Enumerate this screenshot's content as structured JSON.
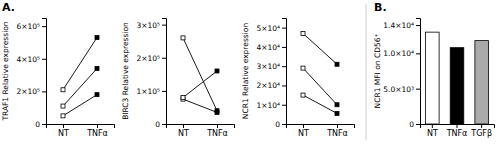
{
  "chart_data": [
    {
      "type": "line",
      "title": "A.",
      "y_label": "TRAF1 Relative expression",
      "categories": [
        "NT",
        "TNFα"
      ],
      "color": "black",
      "marker": "square",
      "series": [
        {
          "values": [
            50000.0,
            180000.0
          ]
        },
        {
          "values": [
            110000.0,
            340000.0
          ]
        },
        {
          "values": [
            210000.0,
            530000.0
          ]
        }
      ],
      "ylim": [
        0,
        650000.0
      ],
      "yticks": [
        0,
        {
          "value": 200000.0,
          "label": "2×10⁵"
        },
        {
          "value": 400000.0,
          "label": "4×10⁵"
        },
        {
          "value": 600000.0,
          "label": "6×10⁵"
        }
      ]
    },
    {
      "type": "line",
      "y_label": "BIRC3 Relative expression",
      "categories": [
        "NT",
        "TNFα"
      ],
      "color": "black",
      "marker": "square",
      "series": [
        {
          "values": [
            75000.0,
            35000.0
          ]
        },
        {
          "values": [
            80000.0,
            160000.0
          ]
        },
        {
          "values": [
            260000.0,
            40000.0
          ]
        }
      ],
      "ylim": [
        0,
        320000.0
      ],
      "yticks": [
        0,
        {
          "value": 100000.0,
          "label": "1×10⁵"
        },
        {
          "value": 200000.0,
          "label": "2×10⁵"
        },
        {
          "value": 300000.0,
          "label": "3×10⁵"
        }
      ]
    },
    {
      "type": "line",
      "y_label": "NCR1 Relative expression",
      "categories": [
        "NT",
        "TNFα"
      ],
      "color": "black",
      "marker": "square",
      "series": [
        {
          "values": [
            15000.0,
            5500.0
          ]
        },
        {
          "values": [
            29000.0,
            10000.0
          ]
        },
        {
          "values": [
            47000.0,
            31000.0
          ]
        }
      ],
      "ylim": [
        0,
        55000.0
      ],
      "yticks": [
        0,
        {
          "value": 10000.0,
          "label": "1×10⁴"
        },
        {
          "value": 20000.0,
          "label": "2×10⁴"
        },
        {
          "value": 30000.0,
          "label": "3×10⁴"
        },
        {
          "value": 40000.0,
          "label": "4×10⁴"
        },
        {
          "value": 50000.0,
          "label": "5×10⁴"
        }
      ]
    },
    {
      "type": "bar",
      "title": "B.",
      "y_label": "NCR1 MFI on CD56⁺",
      "categories": [
        "NT",
        "TNFα",
        "TGFβ"
      ],
      "values": [
        13000,
        10800,
        11800
      ],
      "colors": [
        "white",
        "black",
        "#aaaaaa"
      ],
      "ylim": [
        0,
        15000.0
      ],
      "yticks": [
        0,
        {
          "value": 5000,
          "label": "5.0×10³"
        },
        {
          "value": 10000,
          "label": "1.0×10⁴"
        },
        {
          "value": 14000,
          "label": "1.4×10⁴"
        }
      ]
    }
  ]
}
